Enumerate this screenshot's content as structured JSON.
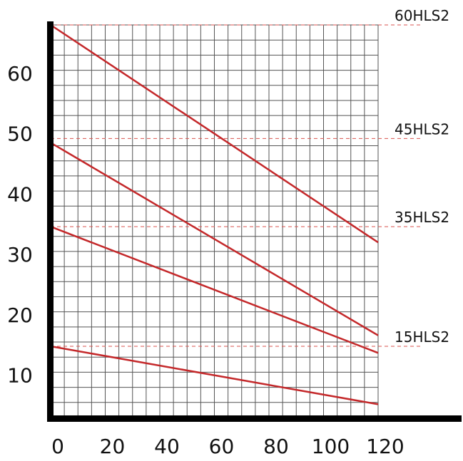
{
  "chart_data": {
    "type": "line",
    "title": "",
    "xlabel": "",
    "ylabel": "",
    "xlim": [
      0,
      120
    ],
    "ylim": [
      3,
      68
    ],
    "grid": true,
    "legend": "none",
    "x_ticks": [
      "0",
      "20",
      "40",
      "60",
      "80",
      "100",
      "120"
    ],
    "y_ticks": [
      "10",
      "20",
      "30",
      "40",
      "50",
      "60"
    ],
    "x_tick_values": [
      0,
      20,
      40,
      60,
      80,
      100,
      120
    ],
    "y_tick_values": [
      10,
      20,
      30,
      40,
      50,
      60
    ],
    "colors": {
      "line": "#c4282a",
      "reference": "#d9534f",
      "grid": "#555555",
      "axis": "#000000",
      "text": "#111111"
    },
    "series": [
      {
        "name": "60HLS2",
        "x": [
          0,
          120
        ],
        "y": [
          68,
          32
        ]
      },
      {
        "name": "45HLS2",
        "x": [
          0,
          120
        ],
        "y": [
          48.5,
          16.6
        ]
      },
      {
        "name": "35HLS2",
        "x": [
          0,
          120
        ],
        "y": [
          34.6,
          13.7
        ]
      },
      {
        "name": "15HLS2",
        "x": [
          0,
          120
        ],
        "y": [
          14.8,
          5.2
        ]
      }
    ],
    "reference_lines": [
      {
        "label": "60HLS2",
        "y": 68
      },
      {
        "label": "45HLS2",
        "y": 49.2
      },
      {
        "label": "35HLS2",
        "y": 34.6
      },
      {
        "label": "15HLS2",
        "y": 14.8
      }
    ]
  }
}
